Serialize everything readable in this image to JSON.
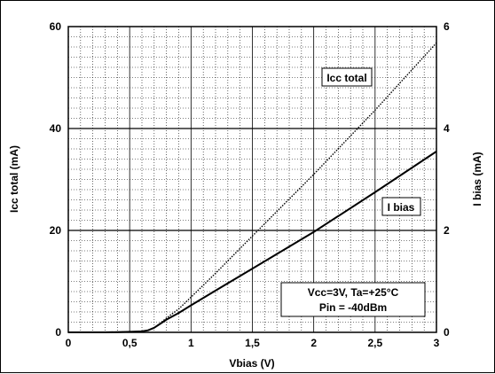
{
  "chart_data": {
    "type": "line",
    "xlabel": "Vbias (V)",
    "ylabel_left": "Icc total (mA)",
    "ylabel_right": "I bias (mA)",
    "xlim": [
      0,
      3
    ],
    "ylim_left": [
      0,
      60
    ],
    "ylim_right": [
      0,
      6
    ],
    "x_ticks": [
      "0",
      "0,5",
      "1",
      "1,5",
      "2",
      "2,5",
      "3"
    ],
    "x_tick_values": [
      0,
      0.5,
      1,
      1.5,
      2,
      2.5,
      3
    ],
    "y_left_ticks": [
      "0",
      "20",
      "40",
      "60"
    ],
    "y_left_tick_values": [
      0,
      20,
      40,
      60
    ],
    "y_right_ticks": [
      "0",
      "2",
      "4",
      "6"
    ],
    "y_right_tick_values": [
      0,
      2,
      4,
      6
    ],
    "grid": true,
    "series": [
      {
        "name": "Icc total",
        "axis": "left",
        "style": "dotted",
        "x": [
          0,
          0.3,
          0.5,
          0.6,
          0.65,
          0.7,
          0.75,
          0.8,
          0.9,
          1.0,
          1.2,
          1.5,
          2.0,
          2.5,
          3.0
        ],
        "y": [
          0,
          0,
          0.1,
          0.2,
          0.4,
          0.9,
          1.8,
          2.8,
          4.6,
          6.9,
          11.6,
          18.9,
          31.0,
          43.6,
          56.8
        ]
      },
      {
        "name": "I bias",
        "axis": "right",
        "style": "solid",
        "x": [
          0,
          0.3,
          0.5,
          0.6,
          0.65,
          0.7,
          0.75,
          0.8,
          0.9,
          1.0,
          1.2,
          1.5,
          2.0,
          2.5,
          3.0
        ],
        "y": [
          0,
          0,
          0.01,
          0.02,
          0.04,
          0.09,
          0.17,
          0.25,
          0.38,
          0.53,
          0.82,
          1.25,
          1.97,
          2.75,
          3.55
        ]
      }
    ],
    "annotations": {
      "icc_label": "Icc total",
      "ibias_label": "I bias",
      "conditions_line1": "Vcc=3V, Ta=+25°C",
      "conditions_line2": "Pin = -40dBm"
    }
  }
}
